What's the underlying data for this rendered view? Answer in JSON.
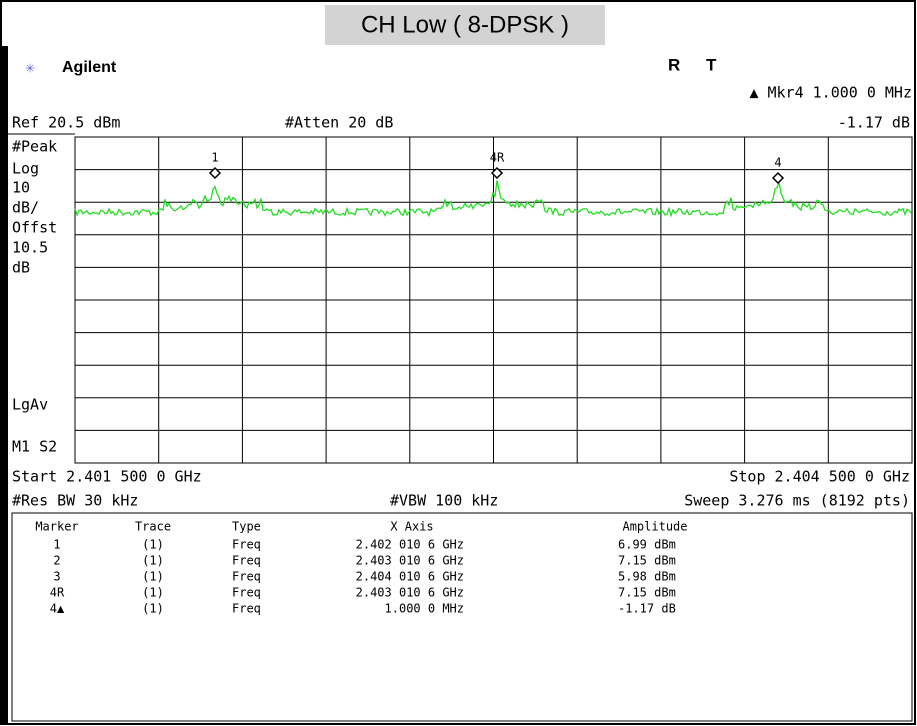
{
  "title": "CH Low ( 8-DPSK )",
  "header": {
    "brand": "Agilent",
    "status": [
      "R",
      "T"
    ],
    "marker_readout": "▲ Mkr4  1.000 0 MHz"
  },
  "settings": {
    "ref": "Ref 20.5 dBm",
    "atten": "#Atten 20 dB",
    "delta": "-1.17 dB"
  },
  "left_labels": [
    "#Peak",
    "Log",
    "10",
    "dB/",
    "Offst",
    "10.5",
    "dB",
    "LgAv",
    "M1  S2"
  ],
  "plot_markers": [
    "1",
    "4R",
    "4"
  ],
  "footer": {
    "start": "Start 2.401 500 0 GHz",
    "stop": "Stop 2.404 500 0 GHz",
    "res_bw": "#Res BW 30 kHz",
    "vbw": "#VBW 100 kHz",
    "sweep": "Sweep 3.276 ms (8192 pts)"
  },
  "table": {
    "columns": [
      "Marker",
      "Trace",
      "Type",
      "X Axis",
      "Amplitude"
    ],
    "rows": [
      [
        "1",
        "(1)",
        "Freq",
        "2.402 010 6 GHz",
        "6.99 dBm"
      ],
      [
        "2",
        "(1)",
        "Freq",
        "2.403 010 6 GHz",
        "7.15 dBm"
      ],
      [
        "3",
        "(1)",
        "Freq",
        "2.404 010 6 GHz",
        "5.98 dBm"
      ],
      [
        "4R",
        "(1)",
        "Freq",
        "2.403 010 6 GHz",
        "7.15 dBm"
      ],
      [
        "4▲",
        "(1)",
        "Freq",
        "1.000 0 MHz",
        "-1.17 dB"
      ]
    ]
  }
}
